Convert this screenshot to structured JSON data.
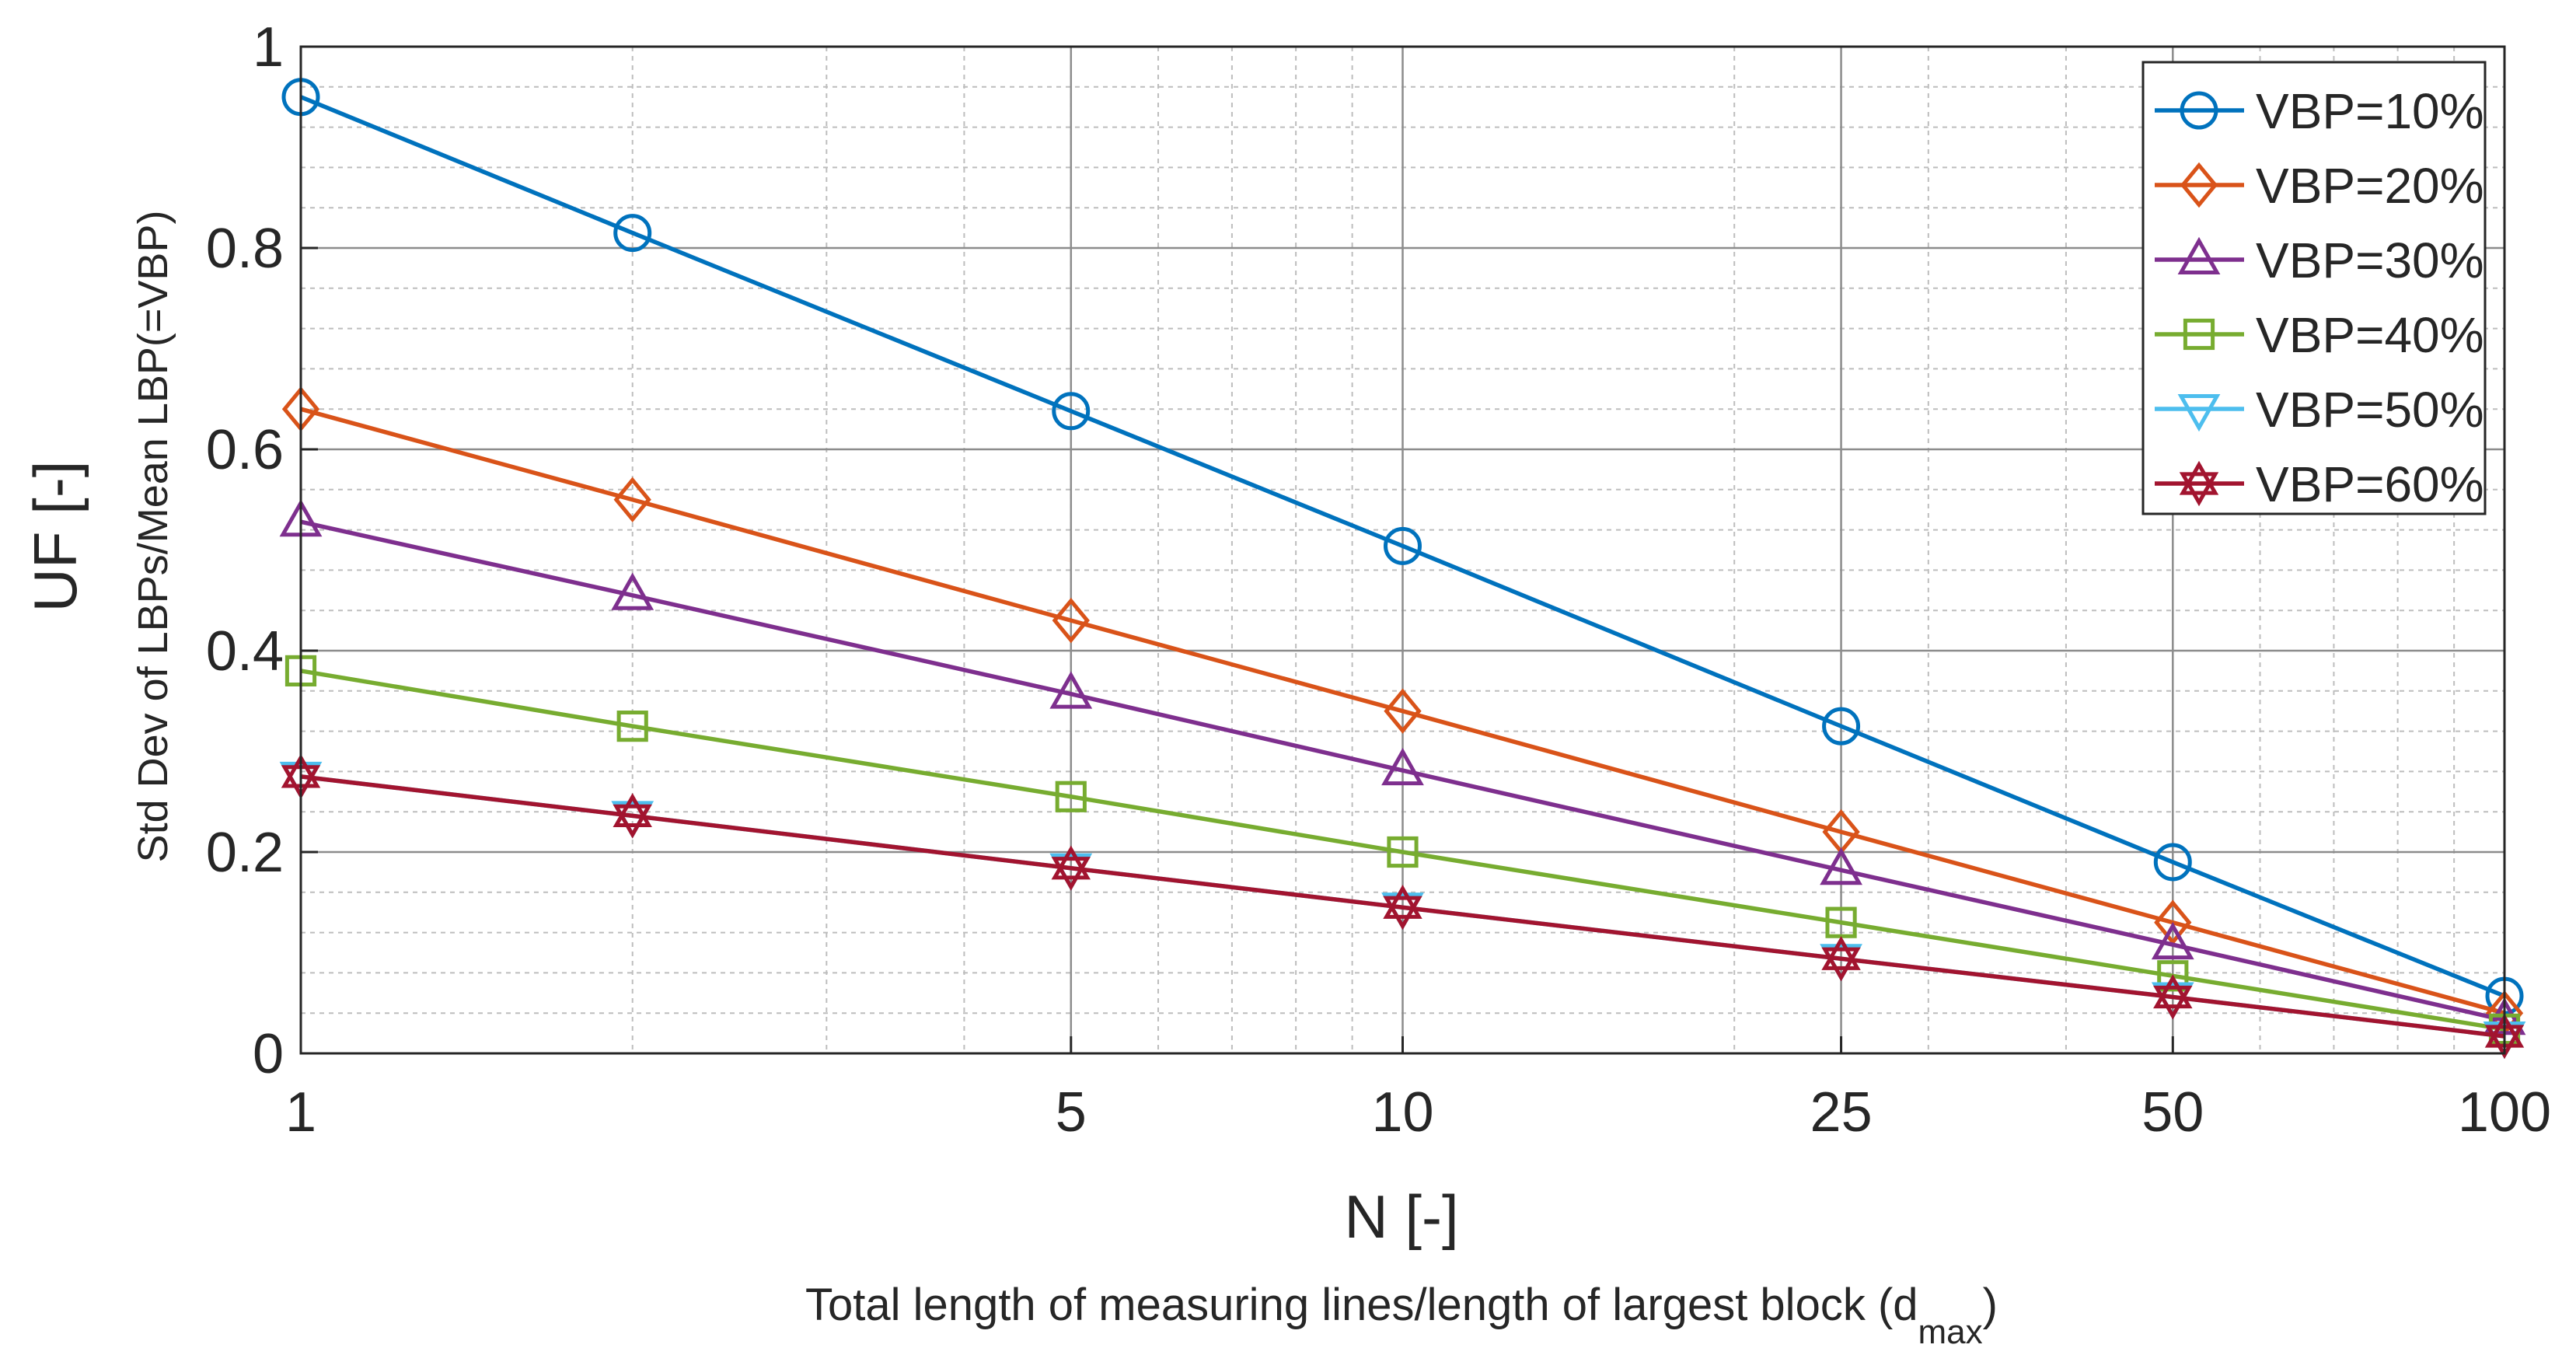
{
  "chart_data": {
    "type": "line",
    "x": [
      1,
      2,
      5,
      10,
      25,
      50,
      100
    ],
    "xscale": "log",
    "xlim": [
      1,
      100
    ],
    "ylim": [
      0,
      1
    ],
    "xticks": [
      1,
      5,
      10,
      25,
      50,
      100
    ],
    "xtick_labels": [
      "1",
      "5",
      "10",
      "25",
      "50",
      "100"
    ],
    "yticks": [
      0,
      0.2,
      0.4,
      0.6,
      0.8,
      1
    ],
    "ytick_labels": [
      "0",
      "0.2",
      "0.4",
      "0.6",
      "0.8",
      "1"
    ],
    "xlabel": "N [-]",
    "xlabel_sub_prefix": "Total length of measuring lines/length of largest block (d",
    "xlabel_sub_subscript": "max",
    "xlabel_sub_suffix": ")",
    "ylabel": "UF [-]",
    "ylabel_sub": "Std Dev of LBPs/Mean LBP(=VBP)",
    "grid": true,
    "minor_grid": true,
    "legend_position": "top-right",
    "series": [
      {
        "name": "VBP=10%",
        "color": "#0072BD",
        "marker": "circle",
        "values": [
          0.95,
          0.815,
          0.638,
          0.504,
          0.325,
          0.19,
          0.057
        ]
      },
      {
        "name": "VBP=20%",
        "color": "#D95319",
        "marker": "diamond",
        "values": [
          0.64,
          0.55,
          0.43,
          0.34,
          0.22,
          0.13,
          0.04
        ]
      },
      {
        "name": "VBP=30%",
        "color": "#7E2F8E",
        "marker": "triangle-up",
        "values": [
          0.528,
          0.455,
          0.357,
          0.281,
          0.182,
          0.108,
          0.033
        ]
      },
      {
        "name": "VBP=40%",
        "color": "#77AC30",
        "marker": "square",
        "values": [
          0.38,
          0.325,
          0.255,
          0.2,
          0.13,
          0.077,
          0.024
        ]
      },
      {
        "name": "VBP=50%",
        "color": "#4DBEEE",
        "marker": "triangle-down",
        "values": [
          0.275,
          0.236,
          0.184,
          0.145,
          0.094,
          0.056,
          0.017
        ]
      },
      {
        "name": "VBP=60%",
        "color": "#A2142F",
        "marker": "hexagram",
        "values": [
          0.275,
          0.236,
          0.184,
          0.145,
          0.094,
          0.056,
          0.017
        ]
      }
    ]
  }
}
